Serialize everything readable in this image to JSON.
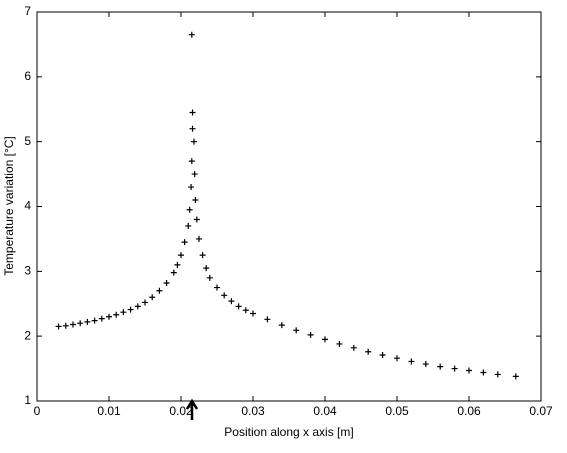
{
  "chart_data": {
    "type": "scatter",
    "xlabel": "Position along x axis [m]",
    "ylabel": "Temperature variation [°C]",
    "x": [
      0.003,
      0.004,
      0.005,
      0.006,
      0.007,
      0.008,
      0.009,
      0.01,
      0.011,
      0.012,
      0.013,
      0.014,
      0.015,
      0.016,
      0.017,
      0.018,
      0.019,
      0.0195,
      0.02,
      0.0205,
      0.021,
      0.0212,
      0.0214,
      0.0215,
      0.0216,
      0.0216,
      0.0215,
      0.0218,
      0.0219,
      0.022,
      0.0222,
      0.0225,
      0.023,
      0.0235,
      0.024,
      0.025,
      0.026,
      0.027,
      0.028,
      0.029,
      0.03,
      0.032,
      0.034,
      0.036,
      0.038,
      0.04,
      0.042,
      0.044,
      0.046,
      0.048,
      0.05,
      0.052,
      0.054,
      0.056,
      0.058,
      0.06,
      0.062,
      0.064,
      0.0665
    ],
    "values": [
      2.15,
      2.16,
      2.18,
      2.2,
      2.22,
      2.24,
      2.27,
      2.3,
      2.33,
      2.37,
      2.41,
      2.46,
      2.52,
      2.6,
      2.7,
      2.82,
      2.98,
      3.1,
      3.25,
      3.45,
      3.7,
      3.95,
      4.3,
      4.7,
      5.2,
      5.45,
      6.65,
      5.0,
      4.5,
      4.1,
      3.8,
      3.5,
      3.25,
      3.05,
      2.9,
      2.75,
      2.63,
      2.54,
      2.46,
      2.4,
      2.35,
      2.26,
      2.17,
      2.09,
      2.02,
      1.95,
      1.88,
      1.82,
      1.76,
      1.71,
      1.66,
      1.61,
      1.57,
      1.53,
      1.5,
      1.47,
      1.44,
      1.41,
      1.38
    ],
    "color": "#000000",
    "xlim": [
      0,
      0.07
    ],
    "xticks": [
      0,
      0.01,
      0.02,
      0.03,
      0.04,
      0.05,
      0.06,
      0.07
    ],
    "ylim": [
      1,
      7
    ],
    "yticks": [
      1,
      2,
      3,
      4,
      5,
      6,
      7
    ],
    "grid": false
  }
}
